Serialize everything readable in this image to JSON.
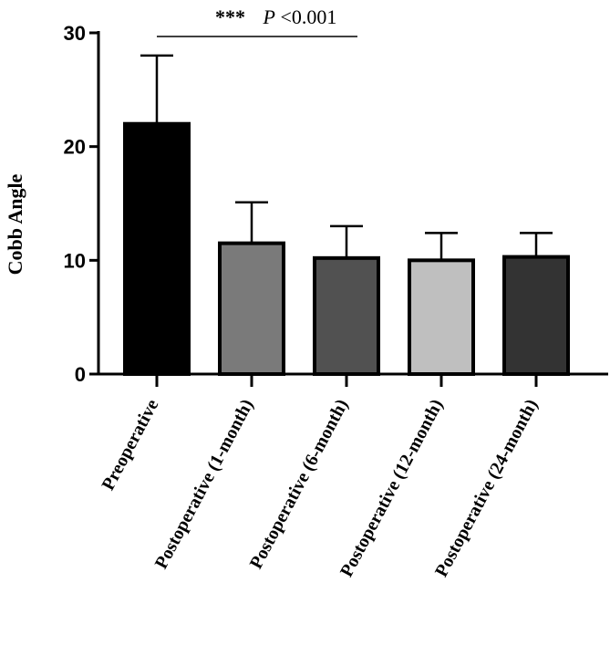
{
  "chart_data": {
    "type": "bar",
    "title": "",
    "xlabel": "",
    "ylabel": "Cobb Angle",
    "ylim": [
      0,
      30
    ],
    "yticks": [
      0,
      10,
      20,
      30
    ],
    "grid": false,
    "categories": [
      "Preoperative",
      "Postoperative (1-month)",
      "Postoperative (6-month)",
      "Postoperative (12-month)",
      "Postoperative (24-month)"
    ],
    "values": [
      22.0,
      11.5,
      10.2,
      10.0,
      10.3
    ],
    "error_upper": [
      6.0,
      3.6,
      2.8,
      2.4,
      2.1
    ],
    "bar_colors": [
      "#000000",
      "#7a7a7a",
      "#515151",
      "#bfbfbf",
      "#333333"
    ],
    "annotation": {
      "stars": "***",
      "p_label": "P",
      "p_value": "<0.001",
      "from_category": 0,
      "to_category": 2
    }
  }
}
